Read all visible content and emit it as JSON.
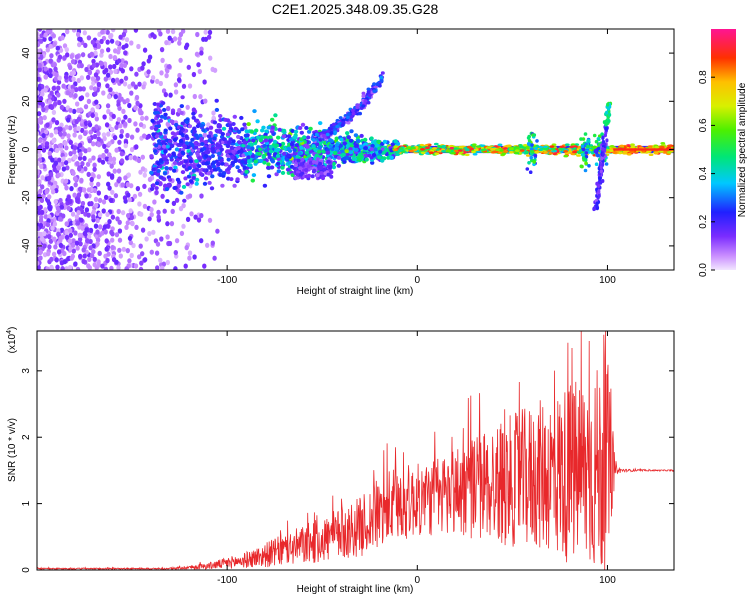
{
  "title": "C2E1.2025.348.09.35.G28",
  "colors": {
    "snr_line": "#e8282b",
    "background": "#ffffff",
    "axis": "#000000"
  },
  "chart_data": [
    {
      "type": "heatmap",
      "name": "spectrogram",
      "xlabel": "Height of straight line (km)",
      "ylabel": "Frequency (Hz)",
      "xlim": [
        -200,
        135
      ],
      "ylim": [
        -50,
        50
      ],
      "xticks": [
        -100,
        0,
        100
      ],
      "xtick_labels": [
        "-100",
        "0",
        "100"
      ],
      "yticks": [
        -40,
        -20,
        0,
        20,
        40
      ],
      "ytick_labels": [
        "-40",
        "-20",
        "0",
        "20",
        "40"
      ],
      "colorbar": {
        "label": "Normalized spectral amplitude",
        "range": [
          0,
          1
        ],
        "ticks": [
          0.0,
          0.2,
          0.4,
          0.6,
          0.8
        ],
        "tick_labels": [
          "0.0",
          "0.2",
          "0.4",
          "0.6",
          "0.8"
        ]
      },
      "features": {
        "noise_region_x": [
          -200,
          -110
        ],
        "carrier_frequency_hz": 0,
        "diverging_branch": {
          "x_start": -55,
          "x_end": -18,
          "freq_start": 5,
          "freq_end": 30
        },
        "strong_carrier_x": [
          -10,
          135
        ],
        "spike_near_x": 100,
        "spike_freq_range": [
          -25,
          20
        ]
      }
    },
    {
      "type": "line",
      "name": "snr",
      "xlabel": "Height of straight line (km)",
      "ylabel": "SNR (10 * v/v)",
      "y_multiplier": "(x10",
      "y_multiplier_exp": "4",
      "y_multiplier_close": ")",
      "xlim": [
        -200,
        135
      ],
      "ylim": [
        0,
        3.6
      ],
      "xticks": [
        -100,
        0,
        100
      ],
      "xtick_labels": [
        "-100",
        "0",
        "100"
      ],
      "yticks": [
        0,
        1,
        2,
        3
      ],
      "ytick_labels": [
        "0",
        "1",
        "2",
        "3"
      ],
      "series": [
        {
          "name": "SNR",
          "envelope_x": [
            -200,
            -130,
            -110,
            -90,
            -70,
            -50,
            -30,
            -20,
            -10,
            0,
            10,
            20,
            30,
            40,
            50,
            60,
            70,
            80,
            90,
            95,
            100,
            103,
            105,
            110,
            120,
            135
          ],
          "envelope_mean": [
            0.02,
            0.02,
            0.06,
            0.15,
            0.3,
            0.45,
            0.65,
            0.85,
            1.0,
            1.05,
            1.1,
            1.2,
            1.25,
            1.3,
            1.35,
            1.4,
            1.45,
            1.45,
            1.5,
            1.5,
            1.55,
            1.5,
            1.5,
            1.5,
            1.5,
            1.5
          ],
          "envelope_amp": [
            0.01,
            0.01,
            0.05,
            0.12,
            0.25,
            0.35,
            0.45,
            0.55,
            0.6,
            0.55,
            0.6,
            0.7,
            0.8,
            0.9,
            1.0,
            1.1,
            1.2,
            1.4,
            1.5,
            1.6,
            1.7,
            0.4,
            0.05,
            0.02,
            0.01,
            0.01
          ]
        }
      ]
    }
  ]
}
